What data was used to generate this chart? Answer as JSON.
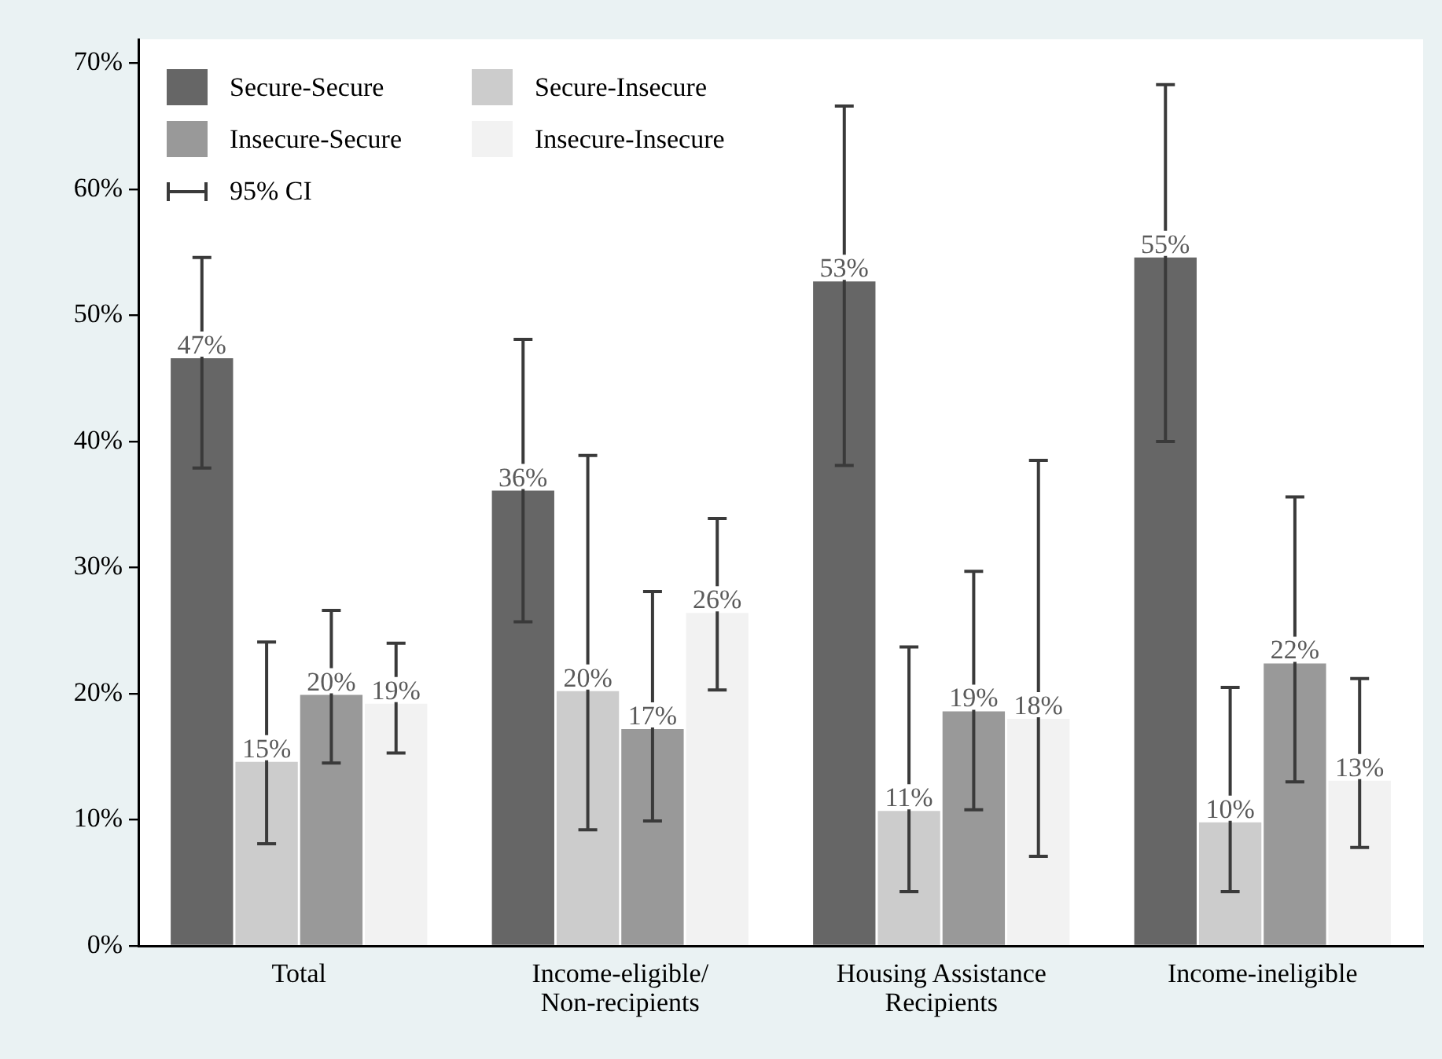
{
  "chart_data": {
    "type": "bar",
    "categories": [
      "Total",
      "Income-eligible/Non-recipients",
      "Housing Assistance Recipients",
      "Income-ineligible"
    ],
    "series": [
      {
        "name": "Secure-Secure",
        "color": "#666666",
        "values": [
          46.6,
          36.1,
          52.7,
          54.6
        ],
        "errors": [
          [
            37.9,
            54.6
          ],
          [
            25.7,
            48.1
          ],
          [
            38.1,
            66.6
          ],
          [
            40.0,
            68.3
          ]
        ],
        "value_labels": [
          "47%",
          "36%",
          "53%",
          "55%"
        ]
      },
      {
        "name": "Secure-Insecure",
        "color": "#cccccc",
        "values": [
          14.6,
          20.2,
          10.7,
          9.8
        ],
        "errors": [
          [
            8.1,
            24.1
          ],
          [
            9.2,
            38.9
          ],
          [
            4.3,
            23.7
          ],
          [
            4.3,
            20.5
          ]
        ],
        "value_labels": [
          "15%",
          "20%",
          "11%",
          "10%"
        ]
      },
      {
        "name": "Insecure-Secure",
        "color": "#999999",
        "values": [
          19.9,
          17.2,
          18.6,
          22.4
        ],
        "errors": [
          [
            14.5,
            26.6
          ],
          [
            9.9,
            28.1
          ],
          [
            10.8,
            29.7
          ],
          [
            13.0,
            35.6
          ]
        ],
        "value_labels": [
          "20%",
          "17%",
          "19%",
          "22%"
        ]
      },
      {
        "name": "Insecure-Insecure",
        "color": "#f2f2f2",
        "values": [
          19.2,
          26.4,
          18.0,
          13.1
        ],
        "errors": [
          [
            15.3,
            24.0
          ],
          [
            20.3,
            33.9
          ],
          [
            7.1,
            38.5
          ],
          [
            7.8,
            21.2
          ]
        ],
        "value_labels": [
          "19%",
          "26%",
          "18%",
          "13%"
        ]
      }
    ],
    "ylim": [
      0,
      71.9
    ],
    "yticks": [
      {
        "value": 0,
        "label": "0%"
      },
      {
        "value": 10,
        "label": "10%"
      },
      {
        "value": 20,
        "label": "20%"
      },
      {
        "value": 30,
        "label": "30%"
      },
      {
        "value": 40,
        "label": "40%"
      },
      {
        "value": 50,
        "label": "50%"
      },
      {
        "value": 60,
        "label": "60%"
      },
      {
        "value": 70,
        "label": "70%"
      }
    ],
    "grid": false,
    "legend": "top left",
    "annotations": [
      "95% CI"
    ]
  }
}
